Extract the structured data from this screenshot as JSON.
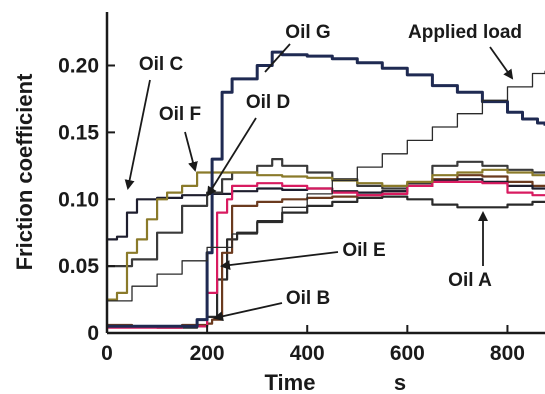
{
  "chart_data": {
    "type": "line",
    "xlabel": "Time",
    "xunit": "s",
    "ylabel": "Friction coefficient",
    "xlim": [
      0,
      875
    ],
    "ylim": [
      0,
      0.24
    ],
    "x_ticks": [
      0,
      200,
      400,
      600,
      800
    ],
    "y_ticks": [
      0.05,
      0.1,
      0.15,
      0.2
    ],
    "x_tick_labels": [
      "0",
      "200",
      "400",
      "600",
      "800"
    ],
    "y_tick_labels": [
      "0.05",
      "0.10",
      "0.15",
      "0.20"
    ],
    "grid": false,
    "series": [
      {
        "name": "Oil A",
        "color": "#2a2a2a",
        "x": [
          0,
          50,
          100,
          150,
          180,
          200,
          220,
          240,
          260,
          300,
          350,
          400,
          450,
          500,
          550,
          600,
          650,
          700,
          750,
          800,
          850,
          875
        ],
        "y": [
          0.005,
          0.005,
          0.004,
          0.004,
          0.005,
          0.012,
          0.04,
          0.07,
          0.075,
          0.083,
          0.09,
          0.095,
          0.098,
          0.101,
          0.102,
          0.1,
          0.096,
          0.094,
          0.094,
          0.096,
          0.098,
          0.098
        ]
      },
      {
        "name": "Oil B",
        "color": "#6b3a1e",
        "x": [
          0,
          50,
          100,
          150,
          200,
          210,
          230,
          250,
          300,
          350,
          400,
          450,
          500,
          550,
          600,
          650,
          700,
          750,
          800,
          850,
          875
        ],
        "y": [
          0.006,
          0.005,
          0.005,
          0.006,
          0.007,
          0.01,
          0.06,
          0.095,
          0.098,
          0.1,
          0.101,
          0.102,
          0.103,
          0.106,
          0.11,
          0.115,
          0.118,
          0.117,
          0.113,
          0.11,
          0.11
        ]
      },
      {
        "name": "Oil C",
        "color": "#1e1e2e",
        "x": [
          0,
          20,
          40,
          60,
          100,
          150,
          200,
          250,
          300,
          350,
          400,
          450,
          500,
          550,
          600,
          650,
          700,
          750,
          800,
          850,
          875
        ],
        "y": [
          0.07,
          0.072,
          0.09,
          0.1,
          0.101,
          0.103,
          0.104,
          0.106,
          0.108,
          0.107,
          0.108,
          0.106,
          0.105,
          0.106,
          0.11,
          0.114,
          0.115,
          0.113,
          0.11,
          0.108,
          0.108
        ]
      },
      {
        "name": "Oil D",
        "color": "#3a3a3a",
        "x": [
          0,
          50,
          100,
          150,
          200,
          230,
          250,
          300,
          330,
          350,
          400,
          450,
          500,
          550,
          600,
          650,
          700,
          750,
          800,
          850,
          875
        ],
        "y": [
          0.05,
          0.055,
          0.075,
          0.095,
          0.105,
          0.115,
          0.12,
          0.125,
          0.13,
          0.125,
          0.12,
          0.115,
          0.11,
          0.108,
          0.112,
          0.125,
          0.128,
          0.125,
          0.122,
          0.12,
          0.12
        ]
      },
      {
        "name": "Oil E",
        "color": "#d81b60",
        "x": [
          0,
          50,
          100,
          150,
          180,
          200,
          220,
          240,
          250,
          300,
          350,
          400,
          450,
          500,
          550,
          600,
          650,
          700,
          750,
          800,
          850,
          875
        ],
        "y": [
          0.004,
          0.004,
          0.004,
          0.005,
          0.005,
          0.03,
          0.09,
          0.1,
          0.11,
          0.112,
          0.11,
          0.108,
          0.105,
          0.103,
          0.104,
          0.11,
          0.113,
          0.113,
          0.112,
          0.105,
          0.103,
          0.103
        ]
      },
      {
        "name": "Oil F",
        "color": "#8a7a2a",
        "x": [
          0,
          20,
          40,
          60,
          80,
          100,
          120,
          150,
          180,
          200,
          250,
          300,
          350,
          400,
          450,
          500,
          550,
          600,
          650,
          700,
          750,
          800,
          850,
          875
        ],
        "y": [
          0.025,
          0.03,
          0.06,
          0.07,
          0.085,
          0.1,
          0.105,
          0.11,
          0.12,
          0.12,
          0.12,
          0.118,
          0.117,
          0.116,
          0.114,
          0.112,
          0.11,
          0.113,
          0.118,
          0.12,
          0.122,
          0.12,
          0.118,
          0.118
        ]
      },
      {
        "name": "Oil G",
        "color": "#1f2a52",
        "x": [
          0,
          50,
          100,
          150,
          180,
          200,
          210,
          230,
          250,
          300,
          330,
          350,
          400,
          450,
          500,
          550,
          600,
          650,
          700,
          750,
          800,
          830,
          860,
          875
        ],
        "y": [
          0.005,
          0.005,
          0.005,
          0.005,
          0.01,
          0.06,
          0.13,
          0.18,
          0.19,
          0.2,
          0.21,
          0.208,
          0.207,
          0.205,
          0.202,
          0.198,
          0.193,
          0.185,
          0.18,
          0.173,
          0.165,
          0.16,
          0.157,
          0.155
        ]
      },
      {
        "name": "Applied load",
        "color": "#2a2a2a",
        "step": true,
        "x": [
          0,
          50,
          100,
          150,
          200,
          250,
          300,
          350,
          400,
          450,
          500,
          550,
          600,
          650,
          700,
          750,
          800,
          850,
          875
        ],
        "y": [
          0.024,
          0.035,
          0.044,
          0.054,
          0.064,
          0.074,
          0.084,
          0.094,
          0.104,
          0.114,
          0.124,
          0.134,
          0.144,
          0.154,
          0.164,
          0.174,
          0.184,
          0.194,
          0.196
        ]
      }
    ],
    "annotations": [
      {
        "text": "Oil G",
        "series": "Oil G"
      },
      {
        "text": "Applied load",
        "series": "Applied load"
      },
      {
        "text": "Oil C",
        "series": "Oil C"
      },
      {
        "text": "Oil F",
        "series": "Oil F"
      },
      {
        "text": "Oil D",
        "series": "Oil D"
      },
      {
        "text": "Oil E",
        "series": "Oil E"
      },
      {
        "text": "Oil A",
        "series": "Oil A"
      },
      {
        "text": "Oil B",
        "series": "Oil B"
      }
    ]
  }
}
